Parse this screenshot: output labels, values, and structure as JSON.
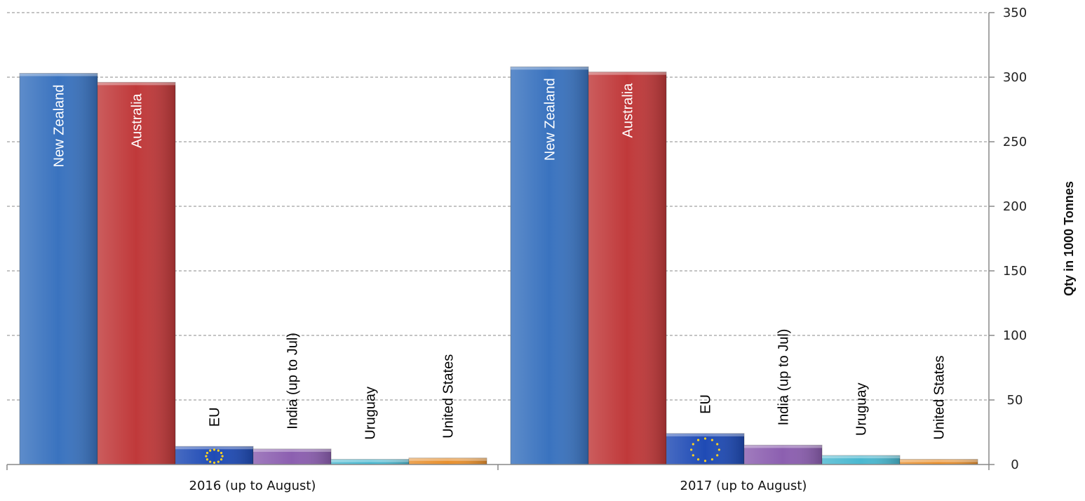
{
  "chart_data": {
    "type": "bar",
    "categories": [
      "2016 (up to August)",
      "2017 (up to August)"
    ],
    "series": [
      {
        "name": "New Zealand",
        "values": [
          303,
          308
        ],
        "color": "#3a73bf",
        "label_color": "#ffffff"
      },
      {
        "name": "Australia",
        "values": [
          296,
          304
        ],
        "color": "#c0393a",
        "label_color": "#ffffff"
      },
      {
        "name": "EU",
        "values": [
          14,
          24
        ],
        "color": "#1f4bb5",
        "label_color": "#000000",
        "icon": "eu-flag-icon"
      },
      {
        "name": "India (up to Jul)",
        "values": [
          12,
          15
        ],
        "color": "#8c5fb0",
        "label_color": "#000000"
      },
      {
        "name": "Uruguay",
        "values": [
          4,
          7
        ],
        "color": "#4ab8d0",
        "label_color": "#000000"
      },
      {
        "name": "United States",
        "values": [
          5,
          4
        ],
        "color": "#e8902e",
        "label_color": "#000000"
      }
    ],
    "ylabel": "Qty in 1000 Tonnes",
    "xlabel": "",
    "ylim": [
      0,
      350
    ],
    "yticks": [
      0,
      50,
      100,
      150,
      200,
      250,
      300,
      350
    ],
    "y_axis_side": "right",
    "grid": true,
    "legend": "none (series names printed on bars)"
  }
}
